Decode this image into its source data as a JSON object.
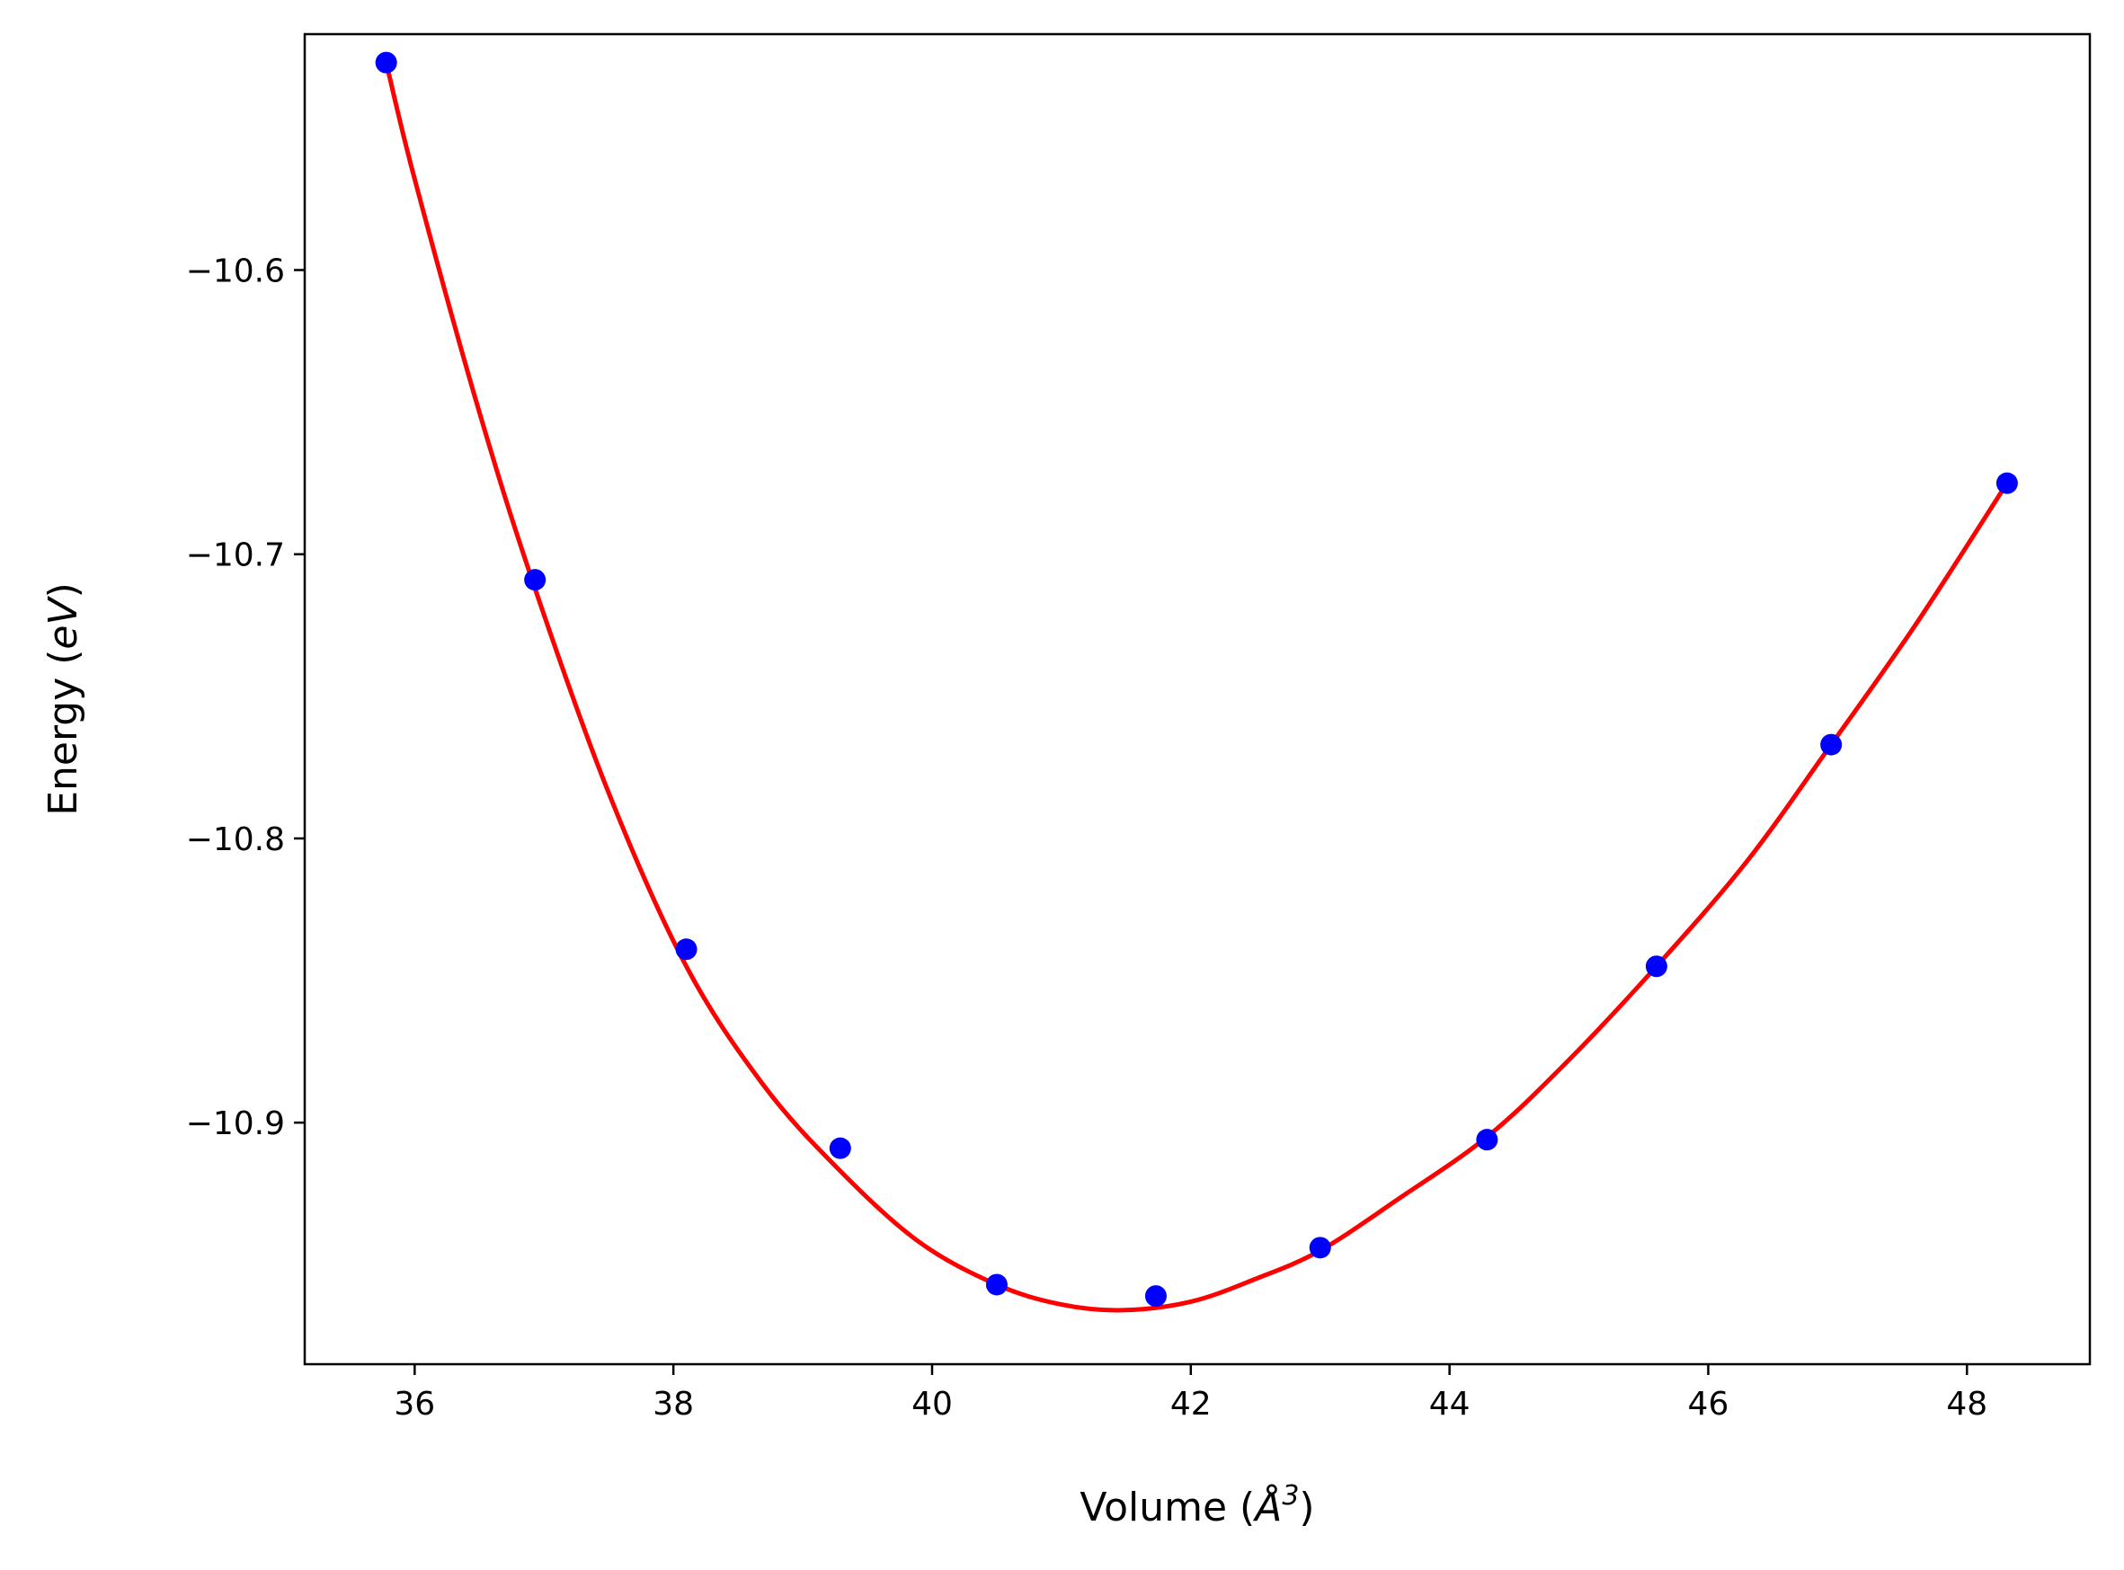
{
  "chart_data": {
    "type": "scatter",
    "xlabel_parts": {
      "pre": "Volume (",
      "sym": "Å",
      "sup": "3",
      "post": ")"
    },
    "ylabel_parts": {
      "pre": "Energy (",
      "sym": "eV",
      "post": ")"
    },
    "xlim": [
      35.15,
      48.95
    ],
    "ylim": [
      -10.985,
      -10.517
    ],
    "xticks": [
      36,
      38,
      40,
      42,
      44,
      46,
      48
    ],
    "xtick_labels": [
      "36",
      "38",
      "40",
      "42",
      "44",
      "46",
      "48"
    ],
    "yticks": [
      -10.6,
      -10.7,
      -10.8,
      -10.9
    ],
    "ytick_labels": [
      "−10.6",
      "−10.7",
      "−10.8",
      "−10.9"
    ],
    "grid": false,
    "series": [
      {
        "kind": "points",
        "color": "#0000ff",
        "x": [
          35.78,
          36.93,
          38.1,
          39.29,
          40.5,
          41.73,
          43.0,
          44.29,
          45.6,
          46.95,
          48.31
        ],
        "y": [
          -10.527,
          -10.709,
          -10.839,
          -10.909,
          -10.957,
          -10.961,
          -10.944,
          -10.906,
          -10.845,
          -10.767,
          -10.675
        ]
      },
      {
        "kind": "fit",
        "color": "#ff0000",
        "x": [
          35.78,
          36.0,
          36.5,
          36.93,
          37.5,
          38.1,
          38.7,
          39.29,
          39.9,
          40.5,
          41.0,
          41.47,
          42.0,
          42.5,
          43.0,
          43.6,
          44.29,
          44.9,
          45.6,
          46.3,
          46.95,
          47.6,
          48.31
        ],
        "y": [
          -10.527,
          -10.568,
          -10.65,
          -10.712,
          -10.784,
          -10.845,
          -10.887,
          -10.917,
          -10.942,
          -10.957,
          -10.964,
          -10.966,
          -10.963,
          -10.955,
          -10.945,
          -10.927,
          -10.905,
          -10.879,
          -10.845,
          -10.808,
          -10.767,
          -10.725,
          -10.675
        ]
      }
    ]
  }
}
